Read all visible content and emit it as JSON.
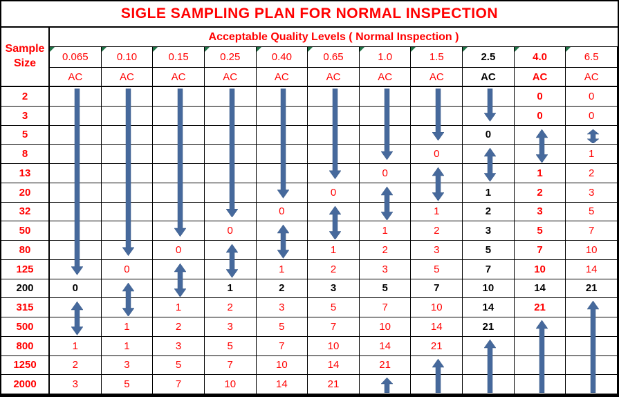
{
  "title": "SIGLE SAMPLING PLAN FOR NORMAL INSPECTION",
  "banner": "Acceptable Quality Levels ( Normal Inspection )",
  "corner_label": "Sample\nSize",
  "colors": {
    "accent_red": "#ff0000",
    "text_black": "#000000",
    "arrow_blue": "#46699c",
    "flag_green": "#1e7145",
    "grid_line": "#000000"
  },
  "aql_columns": [
    {
      "aql": "0.065",
      "ac": "AC",
      "emphasis": "red"
    },
    {
      "aql": "0.10",
      "ac": "AC",
      "emphasis": "red"
    },
    {
      "aql": "0.15",
      "ac": "AC",
      "emphasis": "red"
    },
    {
      "aql": "0.25",
      "ac": "AC",
      "emphasis": "red"
    },
    {
      "aql": "0.40",
      "ac": "AC",
      "emphasis": "red"
    },
    {
      "aql": "0.65",
      "ac": "AC",
      "emphasis": "red"
    },
    {
      "aql": "1.0",
      "ac": "AC",
      "emphasis": "red"
    },
    {
      "aql": "1.5",
      "ac": "AC",
      "emphasis": "red"
    },
    {
      "aql": "2.5",
      "ac": "AC",
      "emphasis": "black-bold"
    },
    {
      "aql": "4.0",
      "ac": "AC",
      "emphasis": "red-bold"
    },
    {
      "aql": "6.5",
      "ac": "AC",
      "emphasis": "red"
    }
  ],
  "body_rows": [
    {
      "size": "2",
      "emphasis": "red",
      "cells": [
        "",
        "",
        "",
        "",
        "",
        "",
        "",
        "",
        "",
        "0",
        "0"
      ]
    },
    {
      "size": "3",
      "emphasis": "red",
      "cells": [
        "",
        "",
        "",
        "",
        "",
        "",
        "",
        "",
        "",
        "0",
        "0"
      ]
    },
    {
      "size": "5",
      "emphasis": "red",
      "cells": [
        "",
        "",
        "",
        "",
        "",
        "",
        "",
        "",
        "0",
        "",
        ""
      ]
    },
    {
      "size": "8",
      "emphasis": "red",
      "cells": [
        "",
        "",
        "",
        "",
        "",
        "",
        "",
        "0",
        "",
        "",
        "1"
      ]
    },
    {
      "size": "13",
      "emphasis": "red",
      "cells": [
        "",
        "",
        "",
        "",
        "",
        "",
        "0",
        "",
        "",
        "1",
        "2"
      ]
    },
    {
      "size": "20",
      "emphasis": "red",
      "cells": [
        "",
        "",
        "",
        "",
        "",
        "0",
        "",
        "",
        "1",
        "2",
        "3"
      ]
    },
    {
      "size": "32",
      "emphasis": "red",
      "cells": [
        "",
        "",
        "",
        "",
        "0",
        "",
        "",
        "1",
        "2",
        "3",
        "5"
      ]
    },
    {
      "size": "50",
      "emphasis": "red",
      "cells": [
        "",
        "",
        "",
        "0",
        "",
        "",
        "1",
        "2",
        "3",
        "5",
        "7"
      ]
    },
    {
      "size": "80",
      "emphasis": "red",
      "cells": [
        "",
        "",
        "0",
        "",
        "",
        "1",
        "2",
        "3",
        "5",
        "7",
        "10"
      ]
    },
    {
      "size": "125",
      "emphasis": "red",
      "cells": [
        "",
        "0",
        "",
        "",
        "1",
        "2",
        "3",
        "5",
        "7",
        "10",
        "14"
      ]
    },
    {
      "size": "200",
      "emphasis": "black",
      "cells": [
        "0",
        "",
        "",
        "1",
        "2",
        "3",
        "5",
        "7",
        "10",
        "14",
        "21"
      ]
    },
    {
      "size": "315",
      "emphasis": "red",
      "cells": [
        "",
        "",
        "1",
        "2",
        "3",
        "5",
        "7",
        "10",
        "14",
        "21",
        ""
      ]
    },
    {
      "size": "500",
      "emphasis": "red",
      "cells": [
        "",
        "1",
        "2",
        "3",
        "5",
        "7",
        "10",
        "14",
        "21",
        "",
        ""
      ]
    },
    {
      "size": "800",
      "emphasis": "red",
      "cells": [
        "1",
        "1",
        "3",
        "5",
        "7",
        "10",
        "14",
        "21",
        "",
        "",
        ""
      ]
    },
    {
      "size": "1250",
      "emphasis": "red",
      "cells": [
        "2",
        "3",
        "5",
        "7",
        "10",
        "14",
        "21",
        "",
        "",
        "",
        ""
      ]
    },
    {
      "size": "2000",
      "emphasis": "red",
      "cells": [
        "3",
        "5",
        "7",
        "10",
        "14",
        "21",
        "",
        "",
        "",
        "",
        ""
      ]
    }
  ],
  "arrows": [
    {
      "col": 0,
      "type": "down",
      "from_size": "2",
      "to_size": "125"
    },
    {
      "col": 0,
      "type": "double",
      "from_size": "315",
      "to_size": "500"
    },
    {
      "col": 1,
      "type": "down",
      "from_size": "2",
      "to_size": "80"
    },
    {
      "col": 1,
      "type": "double",
      "from_size": "200",
      "to_size": "315"
    },
    {
      "col": 2,
      "type": "down",
      "from_size": "2",
      "to_size": "50"
    },
    {
      "col": 2,
      "type": "double",
      "from_size": "125",
      "to_size": "200"
    },
    {
      "col": 3,
      "type": "down",
      "from_size": "2",
      "to_size": "32"
    },
    {
      "col": 3,
      "type": "double",
      "from_size": "80",
      "to_size": "125"
    },
    {
      "col": 4,
      "type": "down",
      "from_size": "2",
      "to_size": "20"
    },
    {
      "col": 4,
      "type": "double",
      "from_size": "50",
      "to_size": "80"
    },
    {
      "col": 5,
      "type": "down",
      "from_size": "2",
      "to_size": "13"
    },
    {
      "col": 5,
      "type": "double",
      "from_size": "32",
      "to_size": "50"
    },
    {
      "col": 6,
      "type": "down",
      "from_size": "2",
      "to_size": "8"
    },
    {
      "col": 6,
      "type": "double",
      "from_size": "20",
      "to_size": "32"
    },
    {
      "col": 6,
      "type": "up",
      "from_size": "2000",
      "to_size": "2000"
    },
    {
      "col": 7,
      "type": "down",
      "from_size": "2",
      "to_size": "5"
    },
    {
      "col": 7,
      "type": "double",
      "from_size": "13",
      "to_size": "20"
    },
    {
      "col": 7,
      "type": "up",
      "from_size": "1250",
      "to_size": "2000"
    },
    {
      "col": 8,
      "type": "down",
      "from_size": "2",
      "to_size": "3"
    },
    {
      "col": 8,
      "type": "double",
      "from_size": "8",
      "to_size": "13"
    },
    {
      "col": 8,
      "type": "up",
      "from_size": "800",
      "to_size": "2000"
    },
    {
      "col": 9,
      "type": "double",
      "from_size": "5",
      "to_size": "8"
    },
    {
      "col": 9,
      "type": "up",
      "from_size": "500",
      "to_size": "2000"
    },
    {
      "col": 10,
      "type": "double",
      "from_size": "5",
      "to_size": "5"
    },
    {
      "col": 10,
      "type": "up",
      "from_size": "315",
      "to_size": "2000"
    }
  ]
}
